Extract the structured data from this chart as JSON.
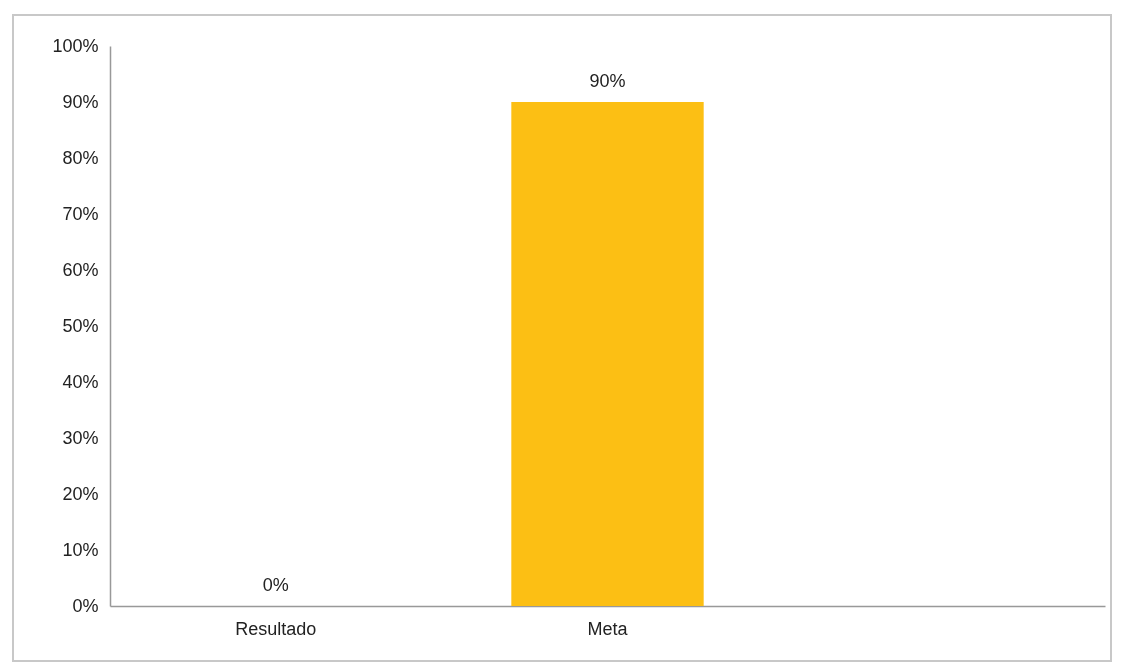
{
  "chart_data": {
    "type": "bar",
    "categories": [
      "Resultado",
      "Meta",
      null
    ],
    "values": [
      0,
      90,
      null
    ],
    "color": "#fcbf14",
    "value_labels": [
      "0%",
      "90%",
      null
    ],
    "ylim": [
      0,
      100
    ],
    "yticks": [
      {
        "value": 0,
        "label": "0%"
      },
      {
        "value": 10,
        "label": "10%"
      },
      {
        "value": 20,
        "label": "20%"
      },
      {
        "value": 30,
        "label": "30%"
      },
      {
        "value": 40,
        "label": "40%"
      },
      {
        "value": 50,
        "label": "50%"
      },
      {
        "value": 60,
        "label": "60%"
      },
      {
        "value": 70,
        "label": "70%"
      },
      {
        "value": 80,
        "label": "80%"
      },
      {
        "value": 90,
        "label": "90%"
      },
      {
        "value": 100,
        "label": "100%"
      }
    ],
    "grid": false
  }
}
